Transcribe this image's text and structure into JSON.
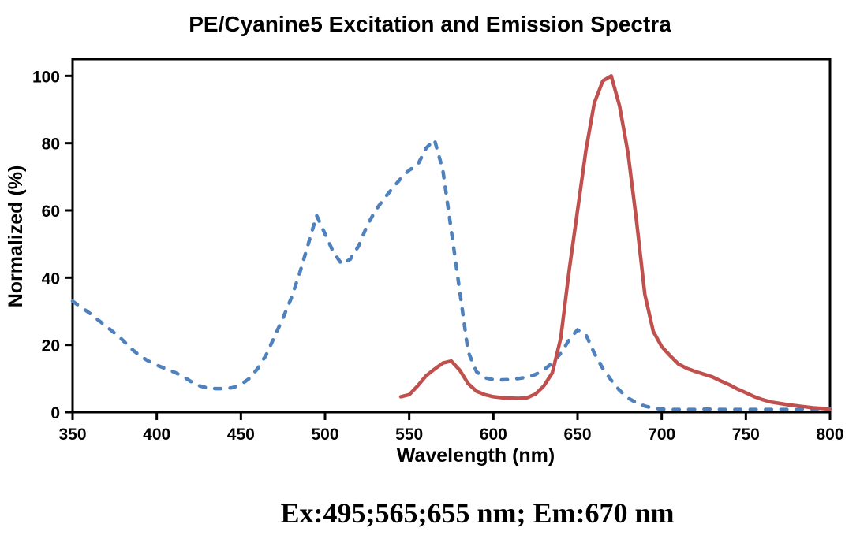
{
  "caption": {
    "text": "Ex:495;565;655 nm; Em:670 nm"
  },
  "chart_data": {
    "type": "line",
    "title": "PE/Cyanine5 Excitation and Emission Spectra",
    "xlabel": "Wavelength (nm)",
    "ylabel": "Normalized (%)",
    "xlim": [
      350,
      800
    ],
    "ylim": [
      0,
      105
    ],
    "x_ticks": [
      350,
      400,
      450,
      500,
      550,
      600,
      650,
      700,
      750,
      800
    ],
    "y_ticks": [
      0,
      20,
      40,
      60,
      80,
      100
    ],
    "grid": false,
    "legend": "none",
    "background": "#ffffff",
    "frame_color": "#000000",
    "series": [
      {
        "name": "Excitation",
        "style": "dashed",
        "color": "#4f81bd",
        "x": [
          350,
          355,
          360,
          365,
          370,
          375,
          380,
          385,
          390,
          395,
          400,
          405,
          410,
          415,
          420,
          425,
          430,
          435,
          440,
          445,
          450,
          455,
          460,
          465,
          470,
          475,
          480,
          485,
          490,
          495,
          500,
          505,
          510,
          515,
          520,
          525,
          530,
          535,
          540,
          545,
          550,
          555,
          560,
          565,
          570,
          575,
          580,
          585,
          590,
          595,
          600,
          605,
          610,
          615,
          620,
          625,
          630,
          635,
          640,
          645,
          650,
          655,
          660,
          665,
          670,
          675,
          680,
          685,
          690,
          695,
          700,
          705,
          710,
          715,
          720,
          725,
          730,
          735,
          740,
          745,
          750,
          755,
          760,
          765,
          770,
          775,
          780,
          785,
          790,
          795,
          800
        ],
        "y": [
          33,
          31.2,
          29.5,
          27.5,
          25.5,
          23.5,
          21.3,
          18.8,
          16.8,
          15.2,
          14,
          13,
          12,
          10.8,
          9.2,
          7.9,
          7.2,
          7,
          7,
          7.3,
          8.2,
          10,
          13,
          17,
          22.5,
          28,
          34,
          41.5,
          50,
          58.5,
          53,
          47.5,
          44,
          45.5,
          49.5,
          55.5,
          60,
          63.5,
          66.5,
          69.5,
          72,
          73.5,
          78.5,
          81,
          72,
          54,
          36,
          18,
          12,
          10.2,
          9.7,
          9.6,
          9.7,
          10,
          10.4,
          11.2,
          12.6,
          14.6,
          17.5,
          21.5,
          24.5,
          23,
          17.5,
          13,
          9.5,
          6.5,
          4.2,
          2.8,
          1.8,
          1.2,
          0.9,
          0.8,
          0.8,
          0.8,
          0.8,
          0.9,
          0.9,
          0.8,
          0.8,
          0.8,
          0.8,
          0.8,
          0.8,
          0.8,
          0.8,
          0.8,
          0.8,
          0.9,
          0.9,
          1,
          1
        ]
      },
      {
        "name": "Emission",
        "style": "solid",
        "color": "#c0504d",
        "x": [
          545,
          550,
          555,
          560,
          565,
          570,
          575,
          580,
          585,
          590,
          595,
          600,
          605,
          610,
          615,
          620,
          625,
          630,
          635,
          640,
          645,
          650,
          655,
          660,
          665,
          670,
          675,
          680,
          685,
          690,
          695,
          700,
          705,
          710,
          715,
          720,
          725,
          730,
          735,
          740,
          745,
          750,
          755,
          760,
          765,
          770,
          775,
          780,
          785,
          790,
          795,
          800
        ],
        "y": [
          4.6,
          5.2,
          7.8,
          10.8,
          12.8,
          14.6,
          15.2,
          12.5,
          8.5,
          6.2,
          5.2,
          4.6,
          4.3,
          4.2,
          4.1,
          4.3,
          5.4,
          7.8,
          11.7,
          22,
          42,
          60,
          78,
          92,
          98.5,
          100,
          91,
          77,
          57,
          35,
          24,
          19.5,
          16.8,
          14.3,
          13,
          12.1,
          11.3,
          10.5,
          9.3,
          8.2,
          6.9,
          5.8,
          4.6,
          3.7,
          3,
          2.6,
          2.2,
          1.9,
          1.6,
          1.3,
          1.1,
          0.9
        ]
      }
    ]
  }
}
